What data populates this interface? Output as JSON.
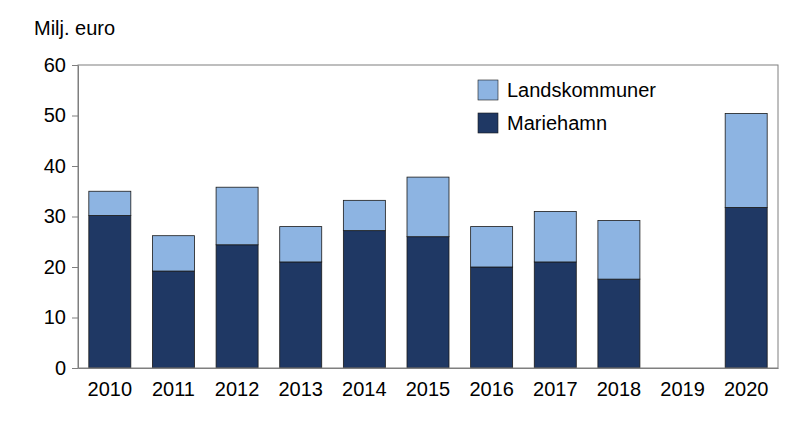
{
  "chart_data": {
    "type": "bar",
    "stacked": true,
    "grid": false,
    "legend": "upper right",
    "y_label": "Milj. euro",
    "categories": [
      "2010",
      "2011",
      "2012",
      "2013",
      "2014",
      "2015",
      "2016",
      "2017",
      "2018",
      "2019",
      "2020"
    ],
    "series": [
      {
        "name": "Mariehamn",
        "color": "#1f3864",
        "values": [
          30.2,
          19.2,
          24.4,
          21.0,
          27.2,
          26.0,
          20.0,
          21.0,
          17.6,
          null,
          31.8
        ]
      },
      {
        "name": "Landskommuner",
        "color": "#8db4e2",
        "values": [
          4.8,
          7.0,
          11.4,
          7.0,
          6.0,
          11.8,
          8.0,
          10.0,
          11.6,
          null,
          18.6
        ]
      }
    ],
    "ylim": [
      0,
      60
    ],
    "yticks": [
      0,
      10,
      20,
      30,
      40,
      50,
      60
    ]
  }
}
